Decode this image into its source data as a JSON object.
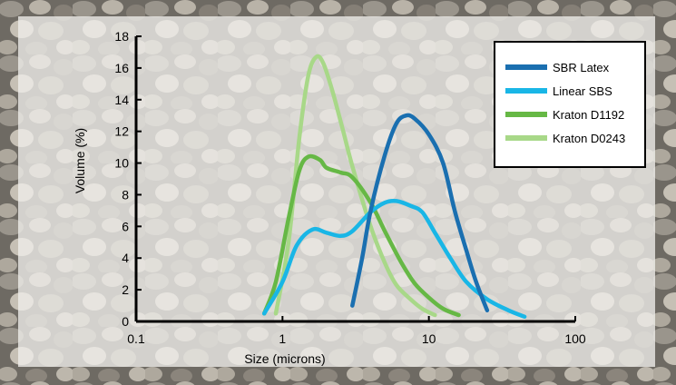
{
  "chart_data": {
    "type": "line",
    "title": "",
    "xlabel": "Size (microns)",
    "ylabel": "Volume (%)",
    "xscale": "log",
    "xlim": [
      0.1,
      100
    ],
    "ylim": [
      0,
      18
    ],
    "xticks": [
      "0.1",
      "1",
      "10",
      "100"
    ],
    "yticks": [
      0,
      2,
      4,
      6,
      8,
      10,
      12,
      14,
      16,
      18
    ],
    "grid": false,
    "legend_position": "top-right",
    "series": [
      {
        "name": "SBR Latex",
        "color": "#1a6fb0",
        "points": [
          [
            3.0,
            1.0
          ],
          [
            3.5,
            4.0
          ],
          [
            4.0,
            7.0
          ],
          [
            5.0,
            10.5
          ],
          [
            6.0,
            12.5
          ],
          [
            7.0,
            13.0
          ],
          [
            8.0,
            12.8
          ],
          [
            10.0,
            11.8
          ],
          [
            12.5,
            10.0
          ],
          [
            15.0,
            7.0
          ],
          [
            18.0,
            4.5
          ],
          [
            21.0,
            2.5
          ],
          [
            25.0,
            0.7
          ]
        ]
      },
      {
        "name": "Linear SBS",
        "color": "#19b6e6",
        "points": [
          [
            0.75,
            0.5
          ],
          [
            1.0,
            2.5
          ],
          [
            1.25,
            4.8
          ],
          [
            1.6,
            5.8
          ],
          [
            2.0,
            5.6
          ],
          [
            2.5,
            5.4
          ],
          [
            3.0,
            5.7
          ],
          [
            4.0,
            6.9
          ],
          [
            5.0,
            7.5
          ],
          [
            6.0,
            7.6
          ],
          [
            7.5,
            7.3
          ],
          [
            9.0,
            6.9
          ],
          [
            11.0,
            5.6
          ],
          [
            14.0,
            4.0
          ],
          [
            18.0,
            2.5
          ],
          [
            25.0,
            1.4
          ],
          [
            35.0,
            0.7
          ],
          [
            45.0,
            0.3
          ]
        ]
      },
      {
        "name": "Kraton D1192",
        "color": "#66b845",
        "points": [
          [
            0.75,
            0.5
          ],
          [
            0.9,
            2.5
          ],
          [
            1.1,
            6.5
          ],
          [
            1.3,
            9.5
          ],
          [
            1.5,
            10.4
          ],
          [
            1.8,
            10.2
          ],
          [
            2.0,
            9.7
          ],
          [
            2.5,
            9.4
          ],
          [
            3.0,
            9.1
          ],
          [
            4.0,
            7.5
          ],
          [
            5.0,
            5.7
          ],
          [
            6.5,
            3.7
          ],
          [
            8.0,
            2.4
          ],
          [
            10.0,
            1.5
          ],
          [
            12.5,
            0.8
          ],
          [
            16.0,
            0.4
          ]
        ]
      },
      {
        "name": "Kraton D0243",
        "color": "#a8d888",
        "points": [
          [
            0.9,
            0.5
          ],
          [
            1.1,
            5.0
          ],
          [
            1.3,
            11.5
          ],
          [
            1.5,
            15.5
          ],
          [
            1.7,
            16.7
          ],
          [
            1.9,
            16.3
          ],
          [
            2.2,
            14.5
          ],
          [
            2.6,
            12.0
          ],
          [
            3.0,
            9.8
          ],
          [
            4.0,
            6.0
          ],
          [
            5.0,
            3.7
          ],
          [
            6.0,
            2.3
          ],
          [
            7.5,
            1.4
          ],
          [
            9.0,
            0.8
          ],
          [
            11.0,
            0.4
          ]
        ]
      }
    ]
  }
}
